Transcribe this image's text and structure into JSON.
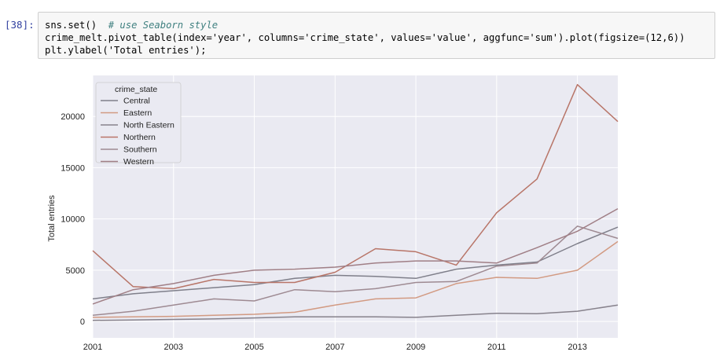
{
  "cell": {
    "prompt": "[38]:",
    "code_line1_code": "sns.set()  ",
    "code_line1_comment": "# use Seaborn style",
    "code_line2": "crime_melt.pivot_table(index='year', columns='crime_state', values='value', aggfunc='sum').plot(figsize=(12,6))",
    "code_line3": "plt.ylabel('Total entries');"
  },
  "chart_data": {
    "type": "line",
    "title": "",
    "xlabel": "",
    "ylabel": "Total entries",
    "legend_title": "crime_state",
    "legend_position": "top-left",
    "grid": true,
    "background": "#eaeaf2",
    "x": [
      2001,
      2002,
      2003,
      2004,
      2005,
      2006,
      2007,
      2008,
      2009,
      2010,
      2011,
      2012,
      2013,
      2014
    ],
    "xlim": [
      2001,
      2014
    ],
    "ylim": [
      -1600,
      24000
    ],
    "xticks": [
      "2001",
      "2003",
      "2005",
      "2007",
      "2009",
      "2011",
      "2013"
    ],
    "yticks": [
      "0",
      "5000",
      "10000",
      "15000",
      "20000"
    ],
    "series": [
      {
        "name": "Central",
        "color": "#7f7f8a",
        "values": [
          2200,
          2700,
          3000,
          3300,
          3600,
          4200,
          4500,
          4400,
          4200,
          5100,
          5500,
          5800,
          7600,
          9200
        ]
      },
      {
        "name": "Eastern",
        "color": "#d29a82",
        "values": [
          400,
          450,
          500,
          600,
          700,
          900,
          1600,
          2200,
          2300,
          3700,
          4300,
          4200,
          5000,
          7800
        ]
      },
      {
        "name": "North Eastern",
        "color": "#87828c",
        "values": [
          100,
          150,
          200,
          250,
          350,
          450,
          450,
          450,
          400,
          600,
          800,
          750,
          1000,
          1600
        ]
      },
      {
        "name": "Northern",
        "color": "#b87568",
        "values": [
          6900,
          3400,
          3200,
          4100,
          3800,
          3800,
          4800,
          7100,
          6800,
          5500,
          10600,
          13900,
          23100,
          19500
        ]
      },
      {
        "name": "Southern",
        "color": "#9e8a92",
        "values": [
          600,
          1000,
          1600,
          2200,
          2000,
          3100,
          2900,
          3200,
          3800,
          3900,
          5400,
          5700,
          9300,
          8100
        ]
      },
      {
        "name": "Western",
        "color": "#a07f86",
        "values": [
          1700,
          3100,
          3700,
          4500,
          5000,
          5100,
          5300,
          5700,
          5900,
          5900,
          5700,
          7200,
          8800,
          11000
        ]
      }
    ]
  }
}
